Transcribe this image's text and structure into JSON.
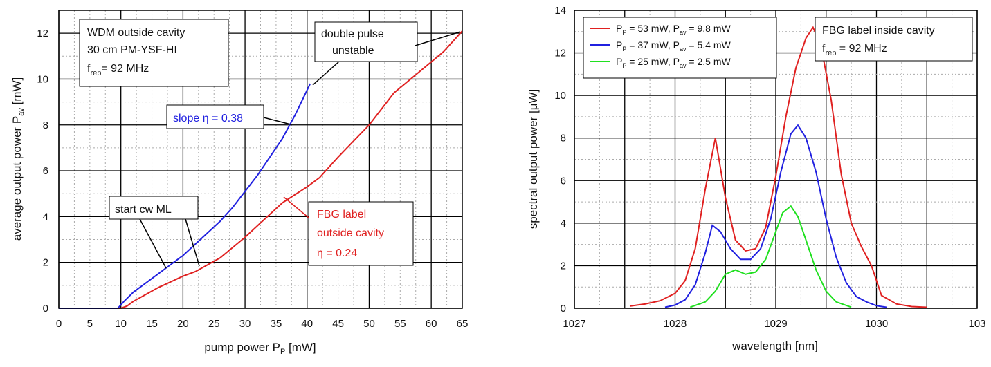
{
  "chart_data": [
    {
      "type": "line",
      "xlabel": "pump power P",
      "xlabel_sub": "P",
      "xlabel_unit": " [mW]",
      "ylabel": "average output power P",
      "ylabel_sub": "av",
      "ylabel_unit": " [mW]",
      "xlim": [
        0,
        65
      ],
      "ylim": [
        0,
        13
      ],
      "xticks": [
        0,
        5,
        10,
        15,
        20,
        25,
        30,
        35,
        40,
        45,
        50,
        55,
        60,
        65
      ],
      "yticks": [
        0,
        2,
        4,
        6,
        8,
        10,
        12
      ],
      "grid": true,
      "series": [
        {
          "color": "#e02020",
          "x": [
            0,
            10,
            11,
            12,
            14,
            16,
            18,
            20,
            22,
            24,
            26,
            28,
            30,
            32,
            34,
            36,
            38,
            40,
            42,
            45,
            50,
            54,
            58,
            62,
            65
          ],
          "y": [
            0,
            0,
            0.1,
            0.3,
            0.6,
            0.9,
            1.15,
            1.4,
            1.6,
            1.9,
            2.2,
            2.65,
            3.1,
            3.6,
            4.1,
            4.6,
            4.95,
            5.3,
            5.7,
            6.6,
            8.0,
            9.4,
            10.3,
            11.2,
            12.1
          ]
        },
        {
          "color": "#2020e0",
          "x": [
            0,
            9.5,
            10.5,
            12,
            14,
            16,
            18,
            20,
            22,
            24,
            26,
            28,
            30,
            32,
            34,
            36,
            38,
            40.5
          ],
          "y": [
            0,
            0,
            0.3,
            0.7,
            1.1,
            1.5,
            1.9,
            2.3,
            2.8,
            3.3,
            3.8,
            4.4,
            5.1,
            5.8,
            6.6,
            7.4,
            8.4,
            9.8
          ]
        }
      ],
      "annotations": {
        "box1_line1": "WDM outside cavity",
        "box1_line2": "30 cm PM-YSF-HI",
        "box1_line3_pre": "f",
        "box1_line3_sub": "rep",
        "box1_line3_post": "= 92 MHz",
        "double_pulse_line1": "double pulse",
        "double_pulse_line2": "unstable",
        "slope_blue": "slope η = 0.38",
        "start_cw": "start cw ML",
        "fbg_line1": "FBG label",
        "fbg_line2": "outside cavity",
        "fbg_line3": "η = 0.24"
      },
      "colors": {
        "red": "#e02020",
        "blue": "#2020e0"
      }
    },
    {
      "type": "line",
      "xlabel": "wavelength [nm]",
      "ylabel": "spectral output power [μW]",
      "xlim": [
        1027,
        1031
      ],
      "ylim": [
        0,
        14
      ],
      "xticks": [
        "1027",
        "1028",
        "1029",
        "1030",
        "103"
      ],
      "yticks": [
        0,
        2,
        4,
        6,
        8,
        10,
        12,
        14
      ],
      "grid": true,
      "legend_placement": "top-left",
      "series": [
        {
          "color": "#e02020",
          "legend_pre": "P",
          "legend_sub1": "P",
          "legend_mid": " = 53 mW, P",
          "legend_sub2": "av",
          "legend_post": " = 9.8 mW",
          "x": [
            1027.55,
            1027.7,
            1027.85,
            1028.0,
            1028.1,
            1028.2,
            1028.3,
            1028.4,
            1028.5,
            1028.6,
            1028.7,
            1028.8,
            1028.9,
            1029.0,
            1029.1,
            1029.2,
            1029.3,
            1029.37,
            1029.45,
            1029.55,
            1029.65,
            1029.75,
            1029.85,
            1029.95,
            1030.05,
            1030.2,
            1030.35,
            1030.5
          ],
          "y": [
            0.1,
            0.2,
            0.35,
            0.7,
            1.3,
            2.8,
            5.6,
            8.0,
            5.2,
            3.2,
            2.7,
            2.8,
            3.8,
            6.2,
            9.0,
            11.3,
            12.7,
            13.2,
            12.3,
            9.8,
            6.3,
            4.0,
            2.9,
            2.0,
            0.6,
            0.2,
            0.08,
            0.05
          ]
        },
        {
          "color": "#2020e0",
          "legend_pre": "P",
          "legend_sub1": "P",
          "legend_mid": " = 37 mW, P",
          "legend_sub2": "av",
          "legend_post": " = 5.4 mW",
          "x": [
            1027.9,
            1028.0,
            1028.1,
            1028.2,
            1028.3,
            1028.37,
            1028.45,
            1028.55,
            1028.65,
            1028.75,
            1028.85,
            1028.95,
            1029.05,
            1029.15,
            1029.22,
            1029.3,
            1029.4,
            1029.5,
            1029.6,
            1029.7,
            1029.8,
            1029.9,
            1030.0,
            1030.1
          ],
          "y": [
            0.05,
            0.15,
            0.4,
            1.1,
            2.6,
            3.9,
            3.6,
            2.8,
            2.3,
            2.3,
            2.8,
            4.2,
            6.4,
            8.2,
            8.6,
            8.0,
            6.4,
            4.2,
            2.4,
            1.2,
            0.55,
            0.3,
            0.12,
            0.05
          ]
        },
        {
          "color": "#20e020",
          "legend_pre": "P",
          "legend_sub1": "P",
          "legend_mid": " = 25 mW, P",
          "legend_sub2": "av",
          "legend_post": " = 2,5 mW",
          "x": [
            1028.15,
            1028.3,
            1028.4,
            1028.5,
            1028.6,
            1028.7,
            1028.8,
            1028.9,
            1029.0,
            1029.07,
            1029.15,
            1029.22,
            1029.3,
            1029.4,
            1029.5,
            1029.6,
            1029.75
          ],
          "y": [
            0.05,
            0.3,
            0.8,
            1.6,
            1.8,
            1.6,
            1.7,
            2.3,
            3.6,
            4.5,
            4.8,
            4.3,
            3.2,
            1.8,
            0.8,
            0.3,
            0.05
          ]
        }
      ],
      "annotations": {
        "box_line1": "FBG label inside cavity",
        "box_line2_pre": "f",
        "box_line2_sub": "rep",
        "box_line2_post": " = 92 MHz"
      }
    }
  ]
}
